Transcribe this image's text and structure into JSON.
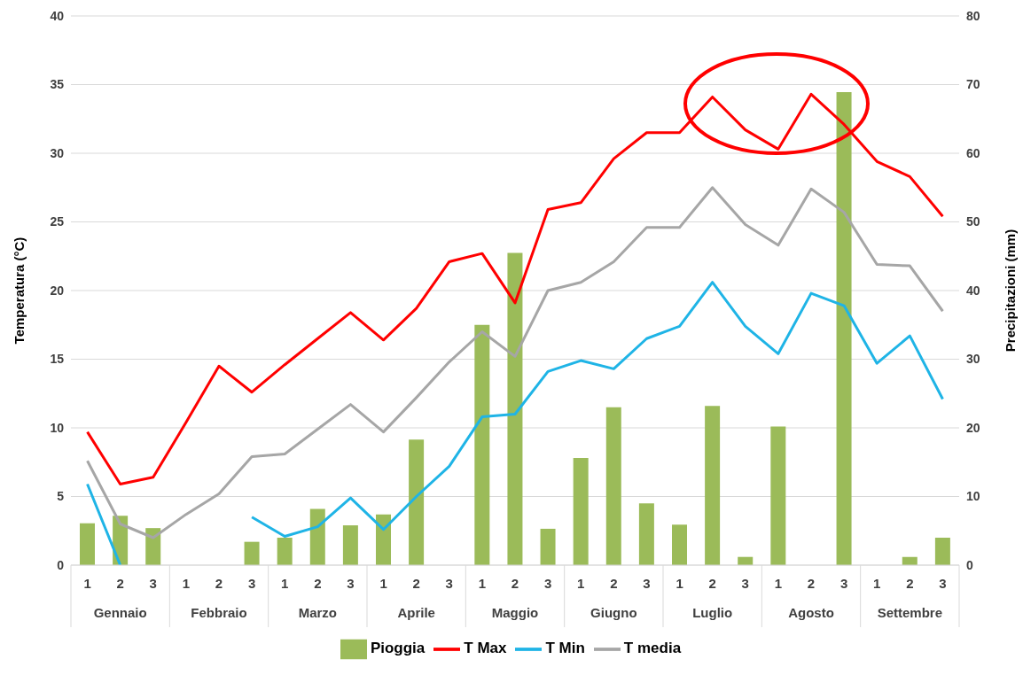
{
  "chart_data": {
    "type": "line",
    "ylabel": "Temperatura (°C)",
    "y2label": "Precipitazioni (mm)",
    "categories": [
      "1",
      "2",
      "3",
      "1",
      "2",
      "3",
      "1",
      "2",
      "3",
      "1",
      "2",
      "3",
      "1",
      "2",
      "3",
      "1",
      "2",
      "3",
      "1",
      "2",
      "3",
      "1",
      "2",
      "3",
      "1",
      "2",
      "3"
    ],
    "annotations": [
      "Gennaio",
      "Febbraio",
      "Marzo",
      "Aprile",
      "Maggio",
      "Giugno",
      "Luglio",
      "Agosto",
      "Settembre"
    ],
    "series": [
      {
        "name": "Pioggia",
        "type": "bar",
        "axis": "y2",
        "color": "#9bbb59",
        "values": [
          6.1,
          7.2,
          5.4,
          0,
          0,
          3.4,
          4.0,
          8.2,
          5.8,
          7.4,
          18.3,
          0,
          35,
          45.5,
          5.3,
          15.6,
          23.0,
          9.0,
          5.9,
          23.2,
          1.2,
          20.2,
          0,
          68.9,
          0,
          1.2,
          4.0
        ]
      },
      {
        "name": "T Max",
        "color": "#ff0000",
        "values": [
          9.7,
          5.9,
          6.4,
          10.4,
          14.5,
          12.6,
          14.6,
          16.5,
          18.4,
          16.4,
          18.7,
          22.1,
          22.7,
          19.1,
          25.9,
          26.4,
          29.6,
          31.5,
          31.5,
          34.1,
          31.7,
          30.3,
          34.3,
          32.1,
          29.4,
          28.3,
          25.4
        ]
      },
      {
        "name": "T Min",
        "color": "#1fb4e6",
        "values": [
          5.9,
          0,
          null,
          null,
          null,
          3.5,
          2.1,
          2.8,
          4.9,
          2.6,
          5.0,
          7.2,
          10.8,
          11.0,
          14.1,
          14.9,
          14.3,
          16.5,
          17.4,
          20.6,
          17.4,
          15.4,
          19.8,
          18.9,
          14.7,
          16.7,
          12.1
        ]
      },
      {
        "name": "T media",
        "color": "#a6a6a6",
        "values": [
          7.6,
          3.0,
          2.0,
          3.7,
          5.2,
          7.9,
          8.1,
          9.9,
          11.7,
          9.7,
          12.2,
          14.8,
          17.0,
          15.2,
          20.0,
          20.6,
          22.1,
          24.6,
          24.6,
          27.5,
          24.8,
          23.3,
          27.4,
          25.7,
          21.9,
          21.8,
          18.5
        ]
      }
    ],
    "ylim": [
      0,
      40
    ],
    "yticks": [
      0,
      5,
      10,
      15,
      20,
      25,
      30,
      35,
      40
    ],
    "y2lim": [
      0,
      80
    ],
    "y2ticks": [
      0,
      10,
      20,
      30,
      40,
      50,
      60,
      70,
      80
    ],
    "grid": "y",
    "legend": "bottom",
    "marker": "none",
    "line_style": "solid"
  }
}
